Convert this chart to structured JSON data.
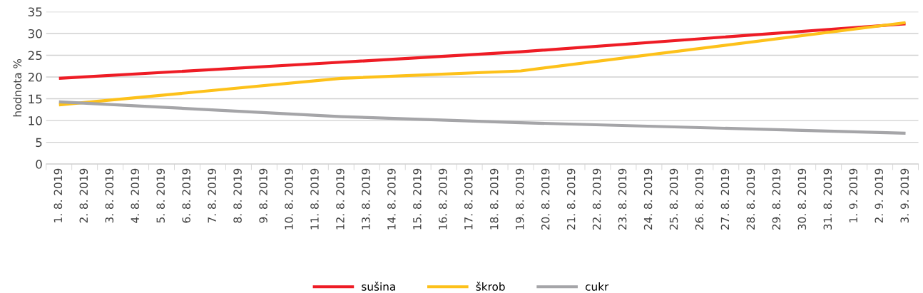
{
  "chart_data": {
    "type": "line",
    "ylabel": "hodnota %",
    "categories": [
      "1. 8. 2019",
      "2. 8. 2019",
      "3. 8. 2019",
      "4. 8. 2019",
      "5. 8. 2019",
      "6. 8. 2019",
      "7. 8. 2019",
      "8. 8. 2019",
      "9. 8. 2019",
      "10. 8. 2019",
      "11. 8. 2019",
      "12. 8. 2019",
      "13. 8. 2019",
      "14. 8. 2019",
      "15. 8. 2019",
      "16. 8. 2019",
      "17. 8. 2019",
      "18. 8. 2019",
      "19. 8. 2019",
      "20. 8. 2019",
      "21. 8. 2019",
      "22. 8. 2019",
      "23. 8. 2019",
      "24. 8. 2019",
      "25. 8. 2019",
      "26. 8. 2019",
      "27. 8. 2019",
      "28. 8. 2019",
      "29. 8. 2019",
      "30. 8. 2019",
      "31. 8. 2019",
      "1. 9. 2019",
      "2. 9. 2019",
      "3. 9. 2019"
    ],
    "series": [
      {
        "name": "sušina",
        "color": "#ee1c25",
        "values": [
          19.7,
          null,
          null,
          null,
          null,
          null,
          null,
          null,
          null,
          null,
          null,
          23.4,
          null,
          null,
          null,
          null,
          null,
          null,
          25.8,
          null,
          null,
          null,
          null,
          null,
          null,
          null,
          null,
          null,
          null,
          null,
          null,
          null,
          null,
          32.2
        ]
      },
      {
        "name": "škrob",
        "color": "#fdc11a",
        "values": [
          13.6,
          null,
          null,
          null,
          null,
          null,
          null,
          null,
          null,
          null,
          null,
          19.7,
          null,
          null,
          null,
          null,
          null,
          null,
          21.4,
          null,
          null,
          null,
          null,
          null,
          null,
          null,
          null,
          null,
          null,
          null,
          null,
          null,
          null,
          32.5
        ]
      },
      {
        "name": "cukr",
        "color": "#a5a5a8",
        "values": [
          14.3,
          null,
          null,
          null,
          null,
          null,
          null,
          null,
          null,
          null,
          null,
          10.9,
          null,
          null,
          null,
          null,
          null,
          null,
          9.5,
          null,
          null,
          null,
          null,
          null,
          null,
          null,
          null,
          null,
          null,
          null,
          null,
          null,
          null,
          7.1
        ]
      }
    ],
    "ylim": [
      0,
      35
    ],
    "yticks": [
      0,
      5,
      10,
      15,
      20,
      25,
      30,
      35
    ],
    "grid": "y",
    "legend": "bottom"
  }
}
